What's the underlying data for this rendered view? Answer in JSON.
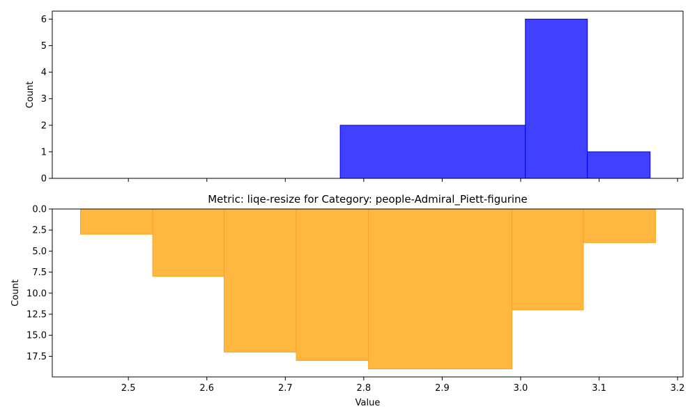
{
  "chart_data": [
    {
      "type": "histogram",
      "title": "",
      "xlabel": "",
      "ylabel": "Count",
      "xlim": [
        2.403,
        3.207
      ],
      "ylim": [
        0,
        6.3
      ],
      "y_inverted": false,
      "xticks": [
        2.5,
        2.6,
        2.7,
        2.8,
        2.9,
        3.0,
        3.1,
        3.2
      ],
      "xtick_labels_shown": false,
      "yticks": [
        0,
        1,
        2,
        3,
        4,
        5,
        6
      ],
      "ytick_labels": [
        "0",
        "1",
        "2",
        "3",
        "4",
        "5",
        "6"
      ],
      "bins": [
        {
          "x0": 2.77,
          "x1": 3.006,
          "count": 2
        },
        {
          "x0": 3.006,
          "x1": 3.085,
          "count": 6
        },
        {
          "x0": 3.085,
          "x1": 3.165,
          "count": 1
        }
      ],
      "fill": "#4040ff",
      "stroke": "#0000ee",
      "grid": false
    },
    {
      "type": "histogram",
      "title": "Metric: liqe-resize for Category: people-Admiral_Piett-figurine",
      "xlabel": "Value",
      "ylabel": "Count",
      "xlim": [
        2.403,
        3.207
      ],
      "ylim": [
        0,
        19.95
      ],
      "y_inverted": true,
      "xticks": [
        2.5,
        2.6,
        2.7,
        2.8,
        2.9,
        3.0,
        3.1,
        3.2
      ],
      "xtick_labels": [
        "2.5",
        "2.6",
        "2.7",
        "2.8",
        "2.9",
        "3.0",
        "3.1",
        "3.2"
      ],
      "xtick_labels_shown": true,
      "yticks": [
        0,
        2.5,
        5,
        7.5,
        10,
        12.5,
        15,
        17.5
      ],
      "ytick_labels": [
        "0.0",
        "2.5",
        "5.0",
        "7.5",
        "10.0",
        "12.5",
        "15.0",
        "17.5"
      ],
      "bins": [
        {
          "x0": 2.439,
          "x1": 2.531,
          "count": 3
        },
        {
          "x0": 2.531,
          "x1": 2.622,
          "count": 8
        },
        {
          "x0": 2.622,
          "x1": 2.714,
          "count": 17
        },
        {
          "x0": 2.714,
          "x1": 2.806,
          "count": 18
        },
        {
          "x0": 2.806,
          "x1": 2.989,
          "count": 19
        },
        {
          "x0": 2.989,
          "x1": 3.08,
          "count": 12
        },
        {
          "x0": 3.08,
          "x1": 3.172,
          "count": 4
        }
      ],
      "fill": "#ffb73f",
      "stroke": "#f5a623",
      "grid": false
    }
  ]
}
